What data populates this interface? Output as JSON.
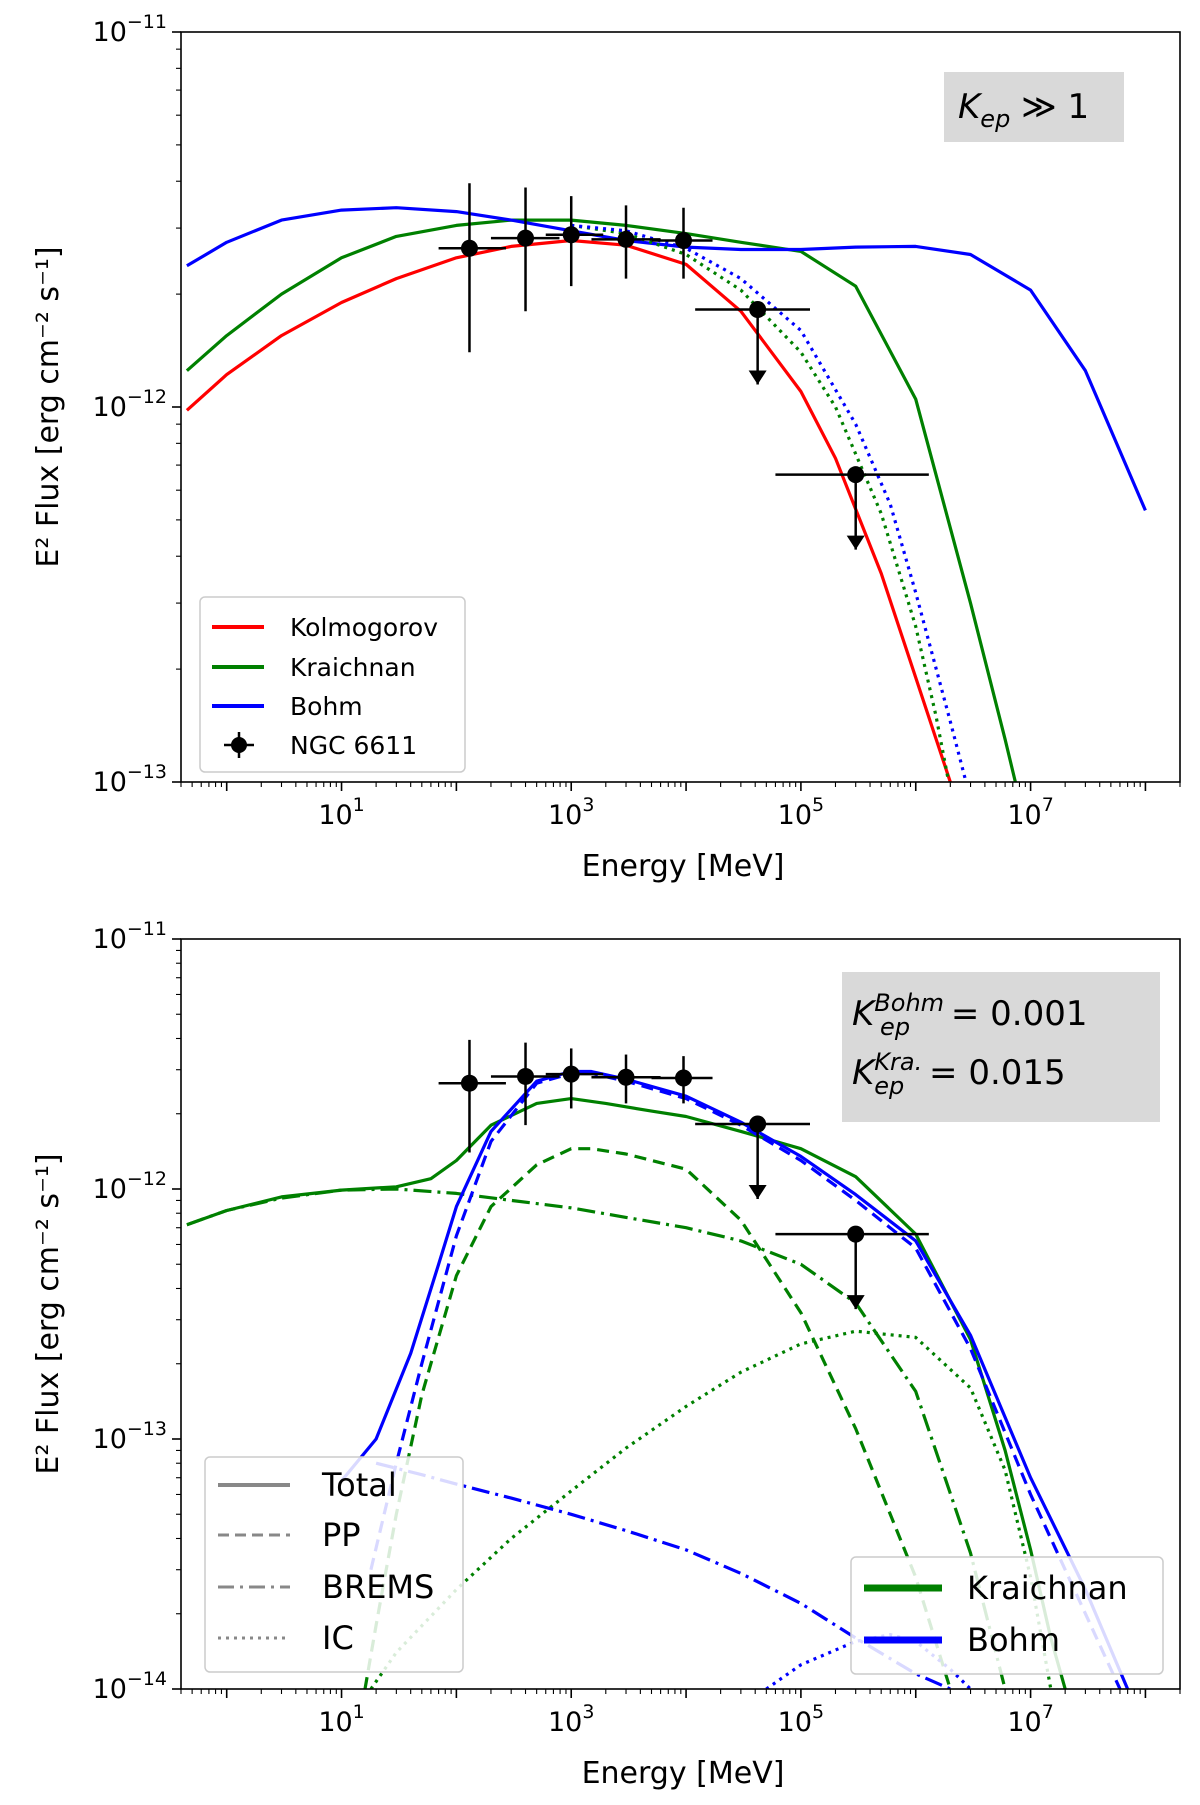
{
  "chart_data": [
    {
      "type": "line",
      "xlabel": "Energy [MeV]",
      "ylabel": "E² Flux [erg cm⁻² s⁻¹]",
      "x_scale": "log",
      "y_scale": "log",
      "xlim": [
        0.4,
        200000000
      ],
      "ylim": [
        1e-13,
        1e-11
      ],
      "x_ticks": [
        {
          "value": 10,
          "label": "10",
          "exp": "1"
        },
        {
          "value": 1000,
          "label": "10",
          "exp": "3"
        },
        {
          "value": 100000,
          "label": "10",
          "exp": "5"
        },
        {
          "value": 10000000,
          "label": "10",
          "exp": "7"
        }
      ],
      "y_ticks": [
        {
          "value": 1e-13,
          "label": "10",
          "exp": "−13"
        },
        {
          "value": 1e-12,
          "label": "10",
          "exp": "−12"
        },
        {
          "value": 1e-11,
          "label": "10",
          "exp": "−11"
        }
      ],
      "annotation": {
        "main": "K",
        "sub": "ep",
        "rest": " ≫ 1"
      },
      "legend": {
        "placement": "lower-left",
        "entries": [
          {
            "label": "Kolmogorov",
            "color": "#ff0000",
            "style": "solid"
          },
          {
            "label": "Kraichnan",
            "color": "#008000",
            "style": "solid"
          },
          {
            "label": "Bohm",
            "color": "#0000ff",
            "style": "solid"
          },
          {
            "label": "NGC 6611",
            "color": "#000000",
            "style": "errorbar"
          }
        ]
      },
      "series": [
        {
          "name": "Kolmogorov",
          "color": "#ff0000",
          "dash": "solid",
          "x": [
            0.45,
            1,
            3,
            10,
            30,
            100,
            300,
            1000,
            3000,
            10000,
            30000,
            100000,
            200000,
            500000,
            1000000,
            2000000,
            3000000
          ],
          "y": [
            9.8e-13,
            1.22e-12,
            1.55e-12,
            1.9e-12,
            2.2e-12,
            2.5e-12,
            2.68e-12,
            2.78e-12,
            2.7e-12,
            2.4e-12,
            1.8e-12,
            1.1e-12,
            7.3e-13,
            3.6e-13,
            1.9e-13,
            1e-13,
            6.5e-14
          ]
        },
        {
          "name": "Kraichnan",
          "color": "#008000",
          "dash": "solid",
          "x": [
            0.45,
            1,
            3,
            10,
            30,
            100,
            300,
            1000,
            3000,
            10000,
            30000,
            100000,
            300000,
            1000000,
            3000000,
            6000000,
            8000000
          ],
          "y": [
            1.25e-12,
            1.55e-12,
            2e-12,
            2.5e-12,
            2.85e-12,
            3.05e-12,
            3.15e-12,
            3.15e-12,
            3.05e-12,
            2.9e-12,
            2.75e-12,
            2.6e-12,
            2.1e-12,
            1.05e-12,
            3e-13,
            1.3e-13,
            9e-14
          ]
        },
        {
          "name": "Bohm",
          "color": "#0000ff",
          "dash": "solid",
          "x": [
            0.45,
            1,
            3,
            10,
            30,
            100,
            300,
            1000,
            3000,
            10000,
            30000,
            100000,
            300000,
            1000000,
            3000000,
            10000000,
            30000000,
            100000000
          ],
          "y": [
            2.38e-12,
            2.75e-12,
            3.15e-12,
            3.35e-12,
            3.4e-12,
            3.32e-12,
            3.15e-12,
            2.95e-12,
            2.78e-12,
            2.67e-12,
            2.63e-12,
            2.63e-12,
            2.67e-12,
            2.68e-12,
            2.55e-12,
            2.05e-12,
            1.25e-12,
            5.3e-13
          ]
        },
        {
          "name": "Kraichnan",
          "color": "#008000",
          "dash": "dotted",
          "x": [
            1000,
            3000,
            10000,
            30000,
            100000,
            200000,
            500000,
            1000000,
            1500000,
            2000000
          ],
          "y": [
            3.05e-12,
            2.9e-12,
            2.55e-12,
            2.05e-12,
            1.4e-12,
            1e-12,
            5.2e-13,
            2.6e-13,
            1.5e-13,
            9.5e-14
          ]
        },
        {
          "name": "Bohm",
          "color": "#0000ff",
          "dash": "dotted",
          "x": [
            1000,
            3000,
            10000,
            30000,
            100000,
            300000,
            600000,
            1000000,
            2000000,
            3000000
          ],
          "y": [
            3.05e-12,
            2.95e-12,
            2.65e-12,
            2.2e-12,
            1.6e-12,
            9e-13,
            5.5e-13,
            3.2e-13,
            1.45e-13,
            9e-14
          ]
        }
      ],
      "points": [
        {
          "x": 130,
          "y": 2.65e-12,
          "xerr": [
            70,
            270
          ],
          "yerr": [
            1.4e-12,
            3.95e-12
          ],
          "upper_limit": false
        },
        {
          "x": 400,
          "y": 2.82e-12,
          "xerr": [
            200,
            790
          ],
          "yerr": [
            1.8e-12,
            3.85e-12
          ],
          "upper_limit": false
        },
        {
          "x": 1000,
          "y": 2.88e-12,
          "xerr": [
            600,
            1900
          ],
          "yerr": [
            2.1e-12,
            3.65e-12
          ],
          "upper_limit": false
        },
        {
          "x": 3000,
          "y": 2.8e-12,
          "xerr": [
            1500,
            6000
          ],
          "yerr": [
            2.2e-12,
            3.45e-12
          ],
          "upper_limit": false
        },
        {
          "x": 9500,
          "y": 2.78e-12,
          "xerr": [
            5000,
            17000
          ],
          "yerr": [
            2.2e-12,
            3.4e-12
          ],
          "upper_limit": false
        },
        {
          "x": 42000,
          "y": 1.82e-12,
          "xerr": [
            12000,
            120000
          ],
          "yerr": null,
          "upper_limit": true
        },
        {
          "x": 300000,
          "y": 6.6e-13,
          "xerr": [
            60000,
            1300000
          ],
          "yerr": null,
          "upper_limit": true
        }
      ]
    },
    {
      "type": "line",
      "xlabel": "Energy [MeV]",
      "ylabel": "E² Flux [erg cm⁻² s⁻¹]",
      "x_scale": "log",
      "y_scale": "log",
      "xlim": [
        0.4,
        200000000
      ],
      "ylim": [
        1e-14,
        1e-11
      ],
      "x_ticks": [
        {
          "value": 10,
          "label": "10",
          "exp": "1"
        },
        {
          "value": 1000,
          "label": "10",
          "exp": "3"
        },
        {
          "value": 100000,
          "label": "10",
          "exp": "5"
        },
        {
          "value": 10000000,
          "label": "10",
          "exp": "7"
        }
      ],
      "y_ticks": [
        {
          "value": 1e-14,
          "label": "10",
          "exp": "−14"
        },
        {
          "value": 1e-13,
          "label": "10",
          "exp": "−13"
        },
        {
          "value": 1e-12,
          "label": "10",
          "exp": "−12"
        },
        {
          "value": 1e-11,
          "label": "10",
          "exp": "−11"
        }
      ],
      "annotation_lines": [
        {
          "main": "K",
          "sub": "ep",
          "sup": "Bohm",
          "rest": " = 0.001"
        },
        {
          "main": "K",
          "sub": "ep",
          "sup": "Kra.",
          "rest": " = 0.015"
        }
      ],
      "legend_style": {
        "placement": "lower-left",
        "entries": [
          {
            "label": "Total",
            "style": "solid"
          },
          {
            "label": "PP",
            "style": "dashed"
          },
          {
            "label": "BREMS",
            "style": "dashdot"
          },
          {
            "label": "IC",
            "style": "dotted"
          }
        ]
      },
      "legend_model": {
        "placement": "lower-right",
        "entries": [
          {
            "label": "Kraichnan",
            "color": "#008000"
          },
          {
            "label": "Bohm",
            "color": "#0000ff"
          }
        ]
      },
      "series": [
        {
          "name": "Kraichnan",
          "component": "Total",
          "color": "#008000",
          "dash": "solid",
          "x": [
            0.45,
            1,
            3,
            10,
            30,
            60,
            100,
            200,
            500,
            1000,
            2000,
            5000,
            10000,
            30000,
            100000,
            300000,
            1000000,
            3000000,
            6000000,
            10000000,
            15000000,
            20000000
          ],
          "y": [
            7.2e-13,
            8.2e-13,
            9.3e-13,
            9.9e-13,
            1.02e-12,
            1.1e-12,
            1.3e-12,
            1.8e-12,
            2.2e-12,
            2.3e-12,
            2.2e-12,
            2.05e-12,
            1.95e-12,
            1.7e-12,
            1.45e-12,
            1.12e-12,
            6.6e-13,
            2.5e-13,
            9e-14,
            3.6e-14,
            1.6e-14,
            1e-14
          ]
        },
        {
          "name": "Kraichnan",
          "component": "PP",
          "color": "#008000",
          "dash": "dashed",
          "x": [
            16,
            20,
            30,
            50,
            100,
            200,
            500,
            1000,
            1500,
            3000,
            10000,
            30000,
            100000,
            300000,
            1000000,
            2000000
          ],
          "y": [
            1e-14,
            1.8e-14,
            5e-14,
            1.5e-13,
            4.5e-13,
            8.5e-13,
            1.25e-12,
            1.45e-12,
            1.45e-12,
            1.38e-12,
            1.2e-12,
            7.5e-13,
            3.2e-13,
            1.1e-13,
            2.8e-14,
            1e-14
          ]
        },
        {
          "name": "Kraichnan",
          "component": "BREMS",
          "color": "#008000",
          "dash": "dashdot",
          "x": [
            0.45,
            1,
            3,
            10,
            30,
            100,
            300,
            1000,
            3000,
            10000,
            30000,
            100000,
            300000,
            1000000,
            3000000,
            6000000
          ],
          "y": [
            7.2e-13,
            8.2e-13,
            9.2e-13,
            9.9e-13,
            1e-12,
            9.6e-13,
            9e-13,
            8.4e-13,
            7.7e-13,
            7e-13,
            6.2e-13,
            5e-13,
            3.5e-13,
            1.55e-13,
            3.5e-14,
            1e-14
          ]
        },
        {
          "name": "Kraichnan",
          "component": "IC",
          "color": "#008000",
          "dash": "dotted",
          "x": [
            18,
            30,
            100,
            300,
            1000,
            3000,
            10000,
            30000,
            100000,
            300000,
            1000000,
            3000000,
            6000000,
            10000000,
            15000000
          ],
          "y": [
            1e-14,
            1.4e-14,
            2.5e-14,
            4e-14,
            6.2e-14,
            9.2e-14,
            1.35e-13,
            1.85e-13,
            2.4e-13,
            2.7e-13,
            2.55e-13,
            1.6e-13,
            7.5e-14,
            2.8e-14,
            1e-14
          ]
        },
        {
          "name": "Bohm",
          "component": "Total",
          "color": "#0000ff",
          "dash": "solid",
          "x": [
            10,
            20,
            40,
            70,
            100,
            200,
            500,
            1000,
            1500,
            3000,
            10000,
            30000,
            100000,
            300000,
            1000000,
            3000000,
            10000000,
            30000000,
            70000000
          ],
          "y": [
            6.8e-14,
            1e-13,
            2.2e-13,
            5e-13,
            8.5e-13,
            1.7e-12,
            2.7e-12,
            2.95e-12,
            2.95e-12,
            2.75e-12,
            2.35e-12,
            1.85e-12,
            1.35e-12,
            9.5e-13,
            6.2e-13,
            2.6e-13,
            7e-14,
            2.5e-14,
            1e-14
          ]
        },
        {
          "name": "Bohm",
          "component": "PP",
          "color": "#0000ff",
          "dash": "dashed",
          "x": [
            18,
            30,
            50,
            100,
            200,
            500,
            1000,
            1500,
            3000,
            10000,
            30000,
            100000,
            300000,
            1000000,
            3000000,
            10000000,
            30000000,
            60000000
          ],
          "y": [
            3e-14,
            8e-14,
            2e-13,
            6.5e-13,
            1.55e-12,
            2.65e-12,
            2.9e-12,
            2.9e-12,
            2.7e-12,
            2.3e-12,
            1.8e-12,
            1.3e-12,
            9e-13,
            5.8e-13,
            2.3e-13,
            6e-14,
            2e-14,
            1e-14
          ]
        },
        {
          "name": "Bohm",
          "component": "BREMS",
          "color": "#0000ff",
          "dash": "dashdot",
          "x": [
            20,
            50,
            100,
            300,
            1000,
            3000,
            10000,
            30000,
            100000,
            300000,
            1000000,
            2000000
          ],
          "y": [
            8e-14,
            7.2e-14,
            6.6e-14,
            5.8e-14,
            5e-14,
            4.3e-14,
            3.6e-14,
            2.9e-14,
            2.2e-14,
            1.6e-14,
            1.15e-14,
            1e-14
          ]
        },
        {
          "name": "Bohm",
          "component": "IC",
          "color": "#0000ff",
          "dash": "dotted",
          "x": [
            50000,
            100000,
            300000,
            600000,
            1000000,
            2000000,
            3000000
          ],
          "y": [
            1e-14,
            1.25e-14,
            1.55e-14,
            1.65e-14,
            1.55e-14,
            1.2e-14,
            1e-14
          ]
        }
      ],
      "points": [
        {
          "x": 130,
          "y": 2.65e-12,
          "xerr": [
            70,
            270
          ],
          "yerr": [
            1.4e-12,
            3.95e-12
          ],
          "upper_limit": false
        },
        {
          "x": 400,
          "y": 2.82e-12,
          "xerr": [
            200,
            790
          ],
          "yerr": [
            1.8e-12,
            3.85e-12
          ],
          "upper_limit": false
        },
        {
          "x": 1000,
          "y": 2.88e-12,
          "xerr": [
            600,
            1900
          ],
          "yerr": [
            2.1e-12,
            3.65e-12
          ],
          "upper_limit": false
        },
        {
          "x": 3000,
          "y": 2.8e-12,
          "xerr": [
            1500,
            6000
          ],
          "yerr": [
            2.2e-12,
            3.45e-12
          ],
          "upper_limit": false
        },
        {
          "x": 9500,
          "y": 2.78e-12,
          "xerr": [
            5000,
            17000
          ],
          "yerr": [
            2.2e-12,
            3.4e-12
          ],
          "upper_limit": false
        },
        {
          "x": 42000,
          "y": 1.82e-12,
          "xerr": [
            12000,
            120000
          ],
          "yerr": null,
          "upper_limit": true
        },
        {
          "x": 300000,
          "y": 6.6e-13,
          "xerr": [
            60000,
            1300000
          ],
          "yerr": null,
          "upper_limit": true
        }
      ]
    }
  ]
}
